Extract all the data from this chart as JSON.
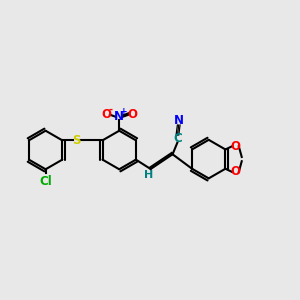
{
  "bg_color": "#e8e8e8",
  "bond_color": "#000000",
  "bond_width": 1.5,
  "figsize": [
    3.0,
    3.0
  ],
  "dpi": 100,
  "atoms": {
    "Cl": {
      "color": "#00aa00",
      "fontsize": 8.5,
      "fontweight": "bold"
    },
    "S": {
      "color": "#cccc00",
      "fontsize": 8.5,
      "fontweight": "bold"
    },
    "N_nitro": {
      "color": "#0000ff",
      "fontsize": 8.5,
      "fontweight": "bold"
    },
    "O_nitro": {
      "color": "#ff0000",
      "fontsize": 8.5,
      "fontweight": "bold"
    },
    "C_nitrile": {
      "color": "#008080",
      "fontsize": 8.5,
      "fontweight": "bold"
    },
    "N_nitrile": {
      "color": "#0000ff",
      "fontsize": 8.5,
      "fontweight": "bold"
    },
    "O_diox": {
      "color": "#ff0000",
      "fontsize": 8.5,
      "fontweight": "bold"
    },
    "H": {
      "color": "#008080",
      "fontsize": 8,
      "fontweight": "bold"
    }
  },
  "xlim": [
    -0.5,
    10.5
  ],
  "ylim": [
    -1.0,
    6.0
  ]
}
